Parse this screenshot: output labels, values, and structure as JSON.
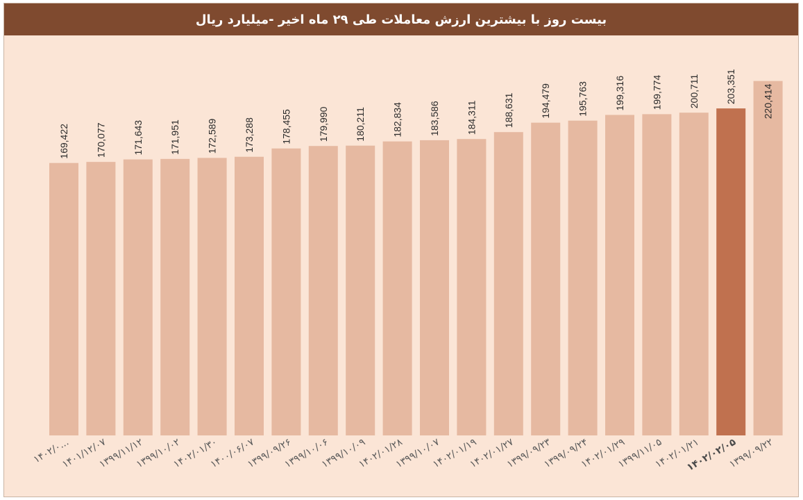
{
  "title": "بیست روز با بیشترین ارزش معاملات طی ۲۹ ماه اخیر -میلیارد ریال",
  "colors": {
    "bar": "#e6b9a1",
    "highlight": "#c0714f",
    "title_bg": "#7f4a2f",
    "plot_bg": "#fbe5d6"
  },
  "chart_data": {
    "type": "bar",
    "title": "بیست روز با بیشترین ارزش معاملات طی ۲۹ ماه اخیر -میلیارد ریال",
    "xlabel": "",
    "ylabel": "",
    "ylim": [
      0,
      225000
    ],
    "grid": false,
    "highlight_index": 18,
    "categories": [
      "۱۴۰۲/۰...",
      "۱۴۰۱/۱۲/۰۷",
      "۱۳۹۹/۱۱/۱۲",
      "۱۳۹۹/۱۰/۰۲",
      "۱۴۰۲/۰۱/۳۰",
      "۱۴۰۰/۰۶/۰۷",
      "۱۳۹۹/۰۹/۲۶",
      "۱۳۹۹/۱۰/۰۶",
      "۱۳۹۹/۱۰/۰۹",
      "۱۴۰۲/۰۱/۲۸",
      "۱۳۹۹/۱۰/۰۷",
      "۱۴۰۲/۰۱/۱۹",
      "۱۴۰۲/۰۱/۲۷",
      "۱۳۹۹/۰۹/۲۳",
      "۱۳۹۹/۰۹/۲۴",
      "۱۴۰۲/۰۱/۲۹",
      "۱۳۹۹/۱۱/۰۵",
      "۱۴۰۲/۰۱/۲۱",
      "۱۴۰۲/۰۲/۰۵",
      "۱۳۹۹/۰۹/۲۲"
    ],
    "values": [
      169422,
      170077,
      171643,
      171951,
      172589,
      173288,
      178455,
      179990,
      180211,
      182834,
      183586,
      184311,
      188631,
      194479,
      195763,
      199316,
      199774,
      200711,
      203351,
      220414
    ],
    "value_labels": [
      "169,422",
      "170,077",
      "171,643",
      "171,951",
      "172,589",
      "173,288",
      "178,455",
      "179,990",
      "180,211",
      "182,834",
      "183,586",
      "184,311",
      "188,631",
      "194,479",
      "195,763",
      "199,316",
      "199,774",
      "200,711",
      "203,351",
      "220,414"
    ]
  }
}
